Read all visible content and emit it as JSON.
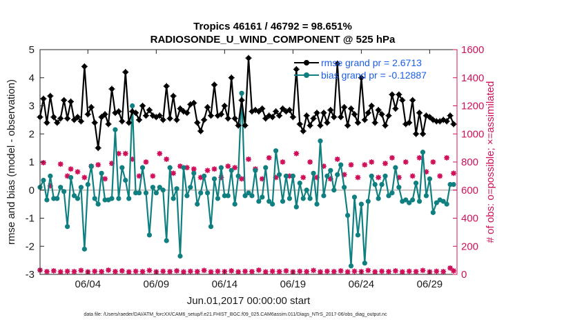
{
  "chart_data": {
    "type": "line",
    "title_line1": "Tropics 46161 / 46792 = 98.651%",
    "title_line2": "RADIOSONDE_U_WIND_COMPONENT @ 525 hPa",
    "xlabel": "Jun.01,2017 00:00:00 start",
    "ylabel_left": "rmse and bias (model - observation)",
    "ylabel_right": "# of obs: o=possible; ×=assimilated",
    "footnote": "data file: /Users/raeder/DAI/ATM_forcXX/CAM6_setup/f.e21.FHIST_BGC.f09_025.CAM6assim.011/Diags_NTrS_2017-06/obs_diag_output.nc",
    "x_range": [
      0.5,
      31.0
    ],
    "x_ticks": [
      4,
      9,
      14,
      19,
      24,
      29
    ],
    "x_tick_labels": [
      "06/04",
      "06/09",
      "06/14",
      "06/19",
      "06/24",
      "06/29"
    ],
    "ylim_left": [
      -3,
      5
    ],
    "y_ticks_left": [
      "-3",
      "-2",
      "-1",
      "0",
      "1",
      "2",
      "3",
      "4",
      "5"
    ],
    "ylim_right": [
      0,
      1600
    ],
    "y_ticks_right": [
      "0",
      "200",
      "400",
      "600",
      "800",
      "1000",
      "1200",
      "1400",
      "1600"
    ],
    "legend": {
      "position": "top-right",
      "rmse_label": "rmse grand pr = 2.6713",
      "bias_label": "bias grand pr = -0.12887"
    },
    "colors": {
      "rmse": "#000000",
      "bias": "#0f7f80",
      "obs": "#d0105a",
      "zero_line": "#c9c0c0",
      "legend_text": "#1a5ee8"
    },
    "rmse": [
      [
        0.5,
        2.6
      ],
      [
        0.75,
        3.25
      ],
      [
        1.0,
        2.4
      ],
      [
        1.25,
        3.35
      ],
      [
        1.5,
        2.6
      ],
      [
        1.75,
        2.4
      ],
      [
        2.0,
        2.55
      ],
      [
        2.25,
        3.2
      ],
      [
        2.5,
        2.55
      ],
      [
        2.75,
        3.15
      ],
      [
        3.0,
        2.5
      ],
      [
        3.25,
        2.6
      ],
      [
        3.5,
        2.45
      ],
      [
        3.75,
        4.4
      ],
      [
        4.0,
        2.7
      ],
      [
        4.25,
        2.95
      ],
      [
        4.5,
        2.4
      ],
      [
        4.75,
        1.5
      ],
      [
        5.0,
        2.6
      ],
      [
        5.25,
        2.7
      ],
      [
        5.5,
        2.35
      ],
      [
        5.75,
        3.6
      ],
      [
        6.0,
        2.75
      ],
      [
        6.25,
        2.8
      ],
      [
        6.5,
        2.45
      ],
      [
        6.75,
        4.2
      ],
      [
        7.0,
        2.4
      ],
      [
        7.25,
        2.8
      ],
      [
        7.5,
        2.75
      ],
      [
        7.75,
        2.5
      ],
      [
        8.0,
        3.0
      ],
      [
        8.25,
        2.65
      ],
      [
        8.5,
        2.85
      ],
      [
        8.75,
        2.65
      ],
      [
        9.0,
        2.6
      ],
      [
        9.25,
        2.65
      ],
      [
        9.5,
        2.5
      ],
      [
        9.75,
        3.7
      ],
      [
        10.0,
        2.55
      ],
      [
        10.25,
        3.35
      ],
      [
        10.5,
        2.5
      ],
      [
        10.75,
        2.9
      ],
      [
        11.0,
        2.8
      ],
      [
        11.25,
        2.75
      ],
      [
        11.5,
        3.05
      ],
      [
        11.75,
        3.1
      ],
      [
        12.0,
        2.4
      ],
      [
        12.25,
        2.1
      ],
      [
        12.5,
        2.5
      ],
      [
        12.75,
        2.95
      ],
      [
        13.0,
        2.65
      ],
      [
        13.25,
        3.75
      ],
      [
        13.5,
        2.65
      ],
      [
        13.75,
        2.7
      ],
      [
        14.0,
        3.0
      ],
      [
        14.25,
        2.55
      ],
      [
        14.5,
        4.0
      ],
      [
        14.75,
        2.55
      ],
      [
        15.0,
        2.3
      ],
      [
        15.25,
        3.2
      ],
      [
        15.5,
        2.3
      ],
      [
        15.75,
        4.7
      ],
      [
        16.0,
        2.8
      ],
      [
        16.25,
        2.85
      ],
      [
        16.5,
        2.8
      ],
      [
        16.75,
        2.9
      ],
      [
        17.0,
        2.55
      ],
      [
        17.25,
        2.65
      ],
      [
        17.5,
        2.6
      ],
      [
        17.75,
        2.8
      ],
      [
        18.0,
        2.65
      ],
      [
        18.25,
        2.9
      ],
      [
        18.5,
        2.8
      ],
      [
        18.75,
        2.85
      ],
      [
        19.0,
        2.6
      ],
      [
        19.25,
        4.3
      ],
      [
        19.5,
        2.35
      ],
      [
        19.75,
        2.1
      ],
      [
        20.0,
        2.65
      ],
      [
        20.25,
        2.3
      ],
      [
        20.5,
        2.55
      ],
      [
        20.75,
        2.75
      ],
      [
        21.0,
        2.3
      ],
      [
        21.25,
        2.75
      ],
      [
        21.5,
        2.4
      ],
      [
        21.75,
        2.85
      ],
      [
        22.0,
        2.6
      ],
      [
        22.25,
        4.5
      ],
      [
        22.5,
        2.6
      ],
      [
        22.75,
        2.95
      ],
      [
        23.0,
        2.3
      ],
      [
        23.25,
        2.9
      ],
      [
        23.5,
        2.7
      ],
      [
        23.75,
        2.4
      ],
      [
        24.0,
        4.0
      ],
      [
        24.25,
        2.5
      ],
      [
        24.5,
        2.75
      ],
      [
        24.75,
        3.0
      ],
      [
        25.0,
        2.4
      ],
      [
        25.25,
        2.85
      ],
      [
        25.5,
        2.7
      ],
      [
        25.75,
        2.3
      ],
      [
        26.0,
        2.65
      ],
      [
        26.25,
        3.4
      ],
      [
        26.5,
        2.9
      ],
      [
        26.75,
        3.4
      ],
      [
        27.0,
        3.2
      ],
      [
        27.25,
        2.35
      ],
      [
        27.5,
        2.4
      ],
      [
        27.75,
        3.2
      ],
      [
        28.0,
        2.0
      ],
      [
        28.25,
        2.75
      ],
      [
        28.5,
        2.0
      ],
      [
        28.75,
        2.65
      ],
      [
        29.0,
        2.6
      ],
      [
        29.25,
        2.5
      ],
      [
        29.5,
        2.45
      ],
      [
        29.75,
        2.45
      ],
      [
        30.0,
        2.5
      ],
      [
        30.25,
        2.45
      ],
      [
        30.5,
        2.65
      ],
      [
        30.75,
        2.35
      ]
    ],
    "bias": [
      [
        0.5,
        0.1
      ],
      [
        0.75,
        0.35
      ],
      [
        1.0,
        -0.35
      ],
      [
        1.25,
        0.5
      ],
      [
        1.5,
        -0.3
      ],
      [
        1.75,
        -0.3
      ],
      [
        2.0,
        0.1
      ],
      [
        2.25,
        -0.05
      ],
      [
        2.5,
        -1.3
      ],
      [
        2.75,
        0.45
      ],
      [
        3.0,
        -0.2
      ],
      [
        3.25,
        -0.3
      ],
      [
        3.5,
        0.1
      ],
      [
        3.75,
        -2.1
      ],
      [
        4.0,
        0.2
      ],
      [
        4.25,
        0.85
      ],
      [
        4.5,
        -0.3
      ],
      [
        4.75,
        -0.5
      ],
      [
        5.0,
        0.6
      ],
      [
        5.25,
        -0.35
      ],
      [
        5.5,
        -0.35
      ],
      [
        5.75,
        -0.3
      ],
      [
        6.0,
        2.15
      ],
      [
        6.25,
        -0.3
      ],
      [
        6.5,
        0.8
      ],
      [
        6.75,
        0.35
      ],
      [
        7.0,
        -0.3
      ],
      [
        7.25,
        3.0
      ],
      [
        7.5,
        -0.1
      ],
      [
        7.75,
        -0.1
      ],
      [
        8.0,
        0.8
      ],
      [
        8.25,
        -0.1
      ],
      [
        8.5,
        -1.6
      ],
      [
        8.75,
        0.1
      ],
      [
        9.0,
        -0.1
      ],
      [
        9.25,
        0.1
      ],
      [
        9.5,
        0.0
      ],
      [
        9.75,
        -1.8
      ],
      [
        10.0,
        0.8
      ],
      [
        10.25,
        -0.3
      ],
      [
        10.5,
        0.05
      ],
      [
        10.75,
        -2.35
      ],
      [
        11.0,
        0.8
      ],
      [
        11.25,
        -0.2
      ],
      [
        11.5,
        0.1
      ],
      [
        11.75,
        0.6
      ],
      [
        12.0,
        -0.5
      ],
      [
        12.25,
        -0.1
      ],
      [
        12.5,
        0.5
      ],
      [
        12.75,
        -0.1
      ],
      [
        13.0,
        -1.3
      ],
      [
        13.25,
        0.4
      ],
      [
        13.5,
        -0.3
      ],
      [
        13.75,
        0.8
      ],
      [
        14.0,
        -0.2
      ],
      [
        14.25,
        -0.2
      ],
      [
        14.5,
        0.7
      ],
      [
        14.75,
        -0.5
      ],
      [
        15.0,
        0.5
      ],
      [
        15.25,
        3.45
      ],
      [
        15.5,
        -0.2
      ],
      [
        15.75,
        -0.1
      ],
      [
        16.0,
        -0.2
      ],
      [
        16.25,
        0.7
      ],
      [
        16.5,
        -0.4
      ],
      [
        16.75,
        -0.25
      ],
      [
        17.0,
        0.8
      ],
      [
        17.25,
        -0.4
      ],
      [
        17.5,
        -0.5
      ],
      [
        17.75,
        1.4
      ],
      [
        18.0,
        0.55
      ],
      [
        18.25,
        -0.4
      ],
      [
        18.5,
        0.5
      ],
      [
        18.75,
        -0.3
      ],
      [
        19.0,
        0.5
      ],
      [
        19.25,
        -0.6
      ],
      [
        19.5,
        0.25
      ],
      [
        19.75,
        -0.3
      ],
      [
        20.0,
        0.0
      ],
      [
        20.25,
        -0.3
      ],
      [
        20.5,
        0.6
      ],
      [
        20.75,
        -0.5
      ],
      [
        21.0,
        1.75
      ],
      [
        21.25,
        -0.2
      ],
      [
        21.5,
        0.5
      ],
      [
        21.75,
        0.7
      ],
      [
        22.0,
        0.0
      ],
      [
        22.25,
        0.55
      ],
      [
        22.5,
        0.9
      ],
      [
        22.75,
        0.1
      ],
      [
        23.0,
        -0.9
      ],
      [
        23.25,
        -2.7
      ],
      [
        23.5,
        -0.25
      ],
      [
        23.75,
        -1.6
      ],
      [
        24.0,
        -0.5
      ],
      [
        24.25,
        -2.6
      ],
      [
        24.5,
        -0.4
      ],
      [
        24.75,
        0.5
      ],
      [
        25.0,
        0.2
      ],
      [
        25.25,
        -0.3
      ],
      [
        25.5,
        0.2
      ],
      [
        25.75,
        0.5
      ],
      [
        26.0,
        -0.2
      ],
      [
        26.25,
        -0.1
      ],
      [
        26.5,
        0.8
      ],
      [
        26.75,
        0.1
      ],
      [
        27.0,
        -0.4
      ],
      [
        27.25,
        -0.35
      ],
      [
        27.5,
        -0.45
      ],
      [
        27.75,
        -0.35
      ],
      [
        28.0,
        0.25
      ],
      [
        28.25,
        -0.4
      ],
      [
        28.5,
        1.35
      ],
      [
        28.75,
        -0.2
      ],
      [
        29.0,
        0.4
      ],
      [
        29.25,
        -0.8
      ],
      [
        29.5,
        -0.45
      ],
      [
        29.75,
        -0.35
      ],
      [
        30.0,
        -0.4
      ],
      [
        30.25,
        -0.5
      ],
      [
        30.5,
        0.2
      ],
      [
        30.75,
        0.2
      ]
    ],
    "obs_possible": [
      [
        0.75,
        795
      ],
      [
        1.25,
        630
      ],
      [
        2.0,
        785
      ],
      [
        2.5,
        700
      ],
      [
        2.75,
        750
      ],
      [
        3.25,
        730
      ],
      [
        3.75,
        690
      ],
      [
        4.25,
        770
      ],
      [
        4.75,
        780
      ],
      [
        5.25,
        680
      ],
      [
        5.75,
        790
      ],
      [
        6.25,
        860
      ],
      [
        6.75,
        860
      ],
      [
        7.25,
        820
      ],
      [
        7.75,
        700
      ],
      [
        8.25,
        800
      ],
      [
        8.75,
        700
      ],
      [
        9.25,
        860
      ],
      [
        9.75,
        820
      ],
      [
        10.25,
        720
      ],
      [
        10.75,
        770
      ],
      [
        11.25,
        760
      ],
      [
        11.75,
        750
      ],
      [
        12.25,
        690
      ],
      [
        12.75,
        740
      ],
      [
        13.25,
        750
      ],
      [
        13.75,
        690
      ],
      [
        14.25,
        770
      ],
      [
        14.75,
        760
      ],
      [
        15.25,
        680
      ],
      [
        15.75,
        820
      ],
      [
        16.25,
        750
      ],
      [
        16.75,
        680
      ],
      [
        17.25,
        830
      ],
      [
        17.75,
        690
      ],
      [
        18.25,
        800
      ],
      [
        18.75,
        700
      ],
      [
        19.25,
        860
      ],
      [
        19.75,
        690
      ],
      [
        20.25,
        800
      ],
      [
        20.75,
        690
      ],
      [
        21.25,
        770
      ],
      [
        21.75,
        680
      ],
      [
        22.25,
        820
      ],
      [
        22.75,
        710
      ],
      [
        23.25,
        780
      ],
      [
        23.75,
        690
      ],
      [
        24.25,
        780
      ],
      [
        24.75,
        800
      ],
      [
        25.25,
        690
      ],
      [
        25.75,
        790
      ],
      [
        26.25,
        830
      ],
      [
        26.75,
        690
      ],
      [
        27.25,
        800
      ],
      [
        27.75,
        700
      ],
      [
        28.25,
        830
      ],
      [
        28.75,
        730
      ],
      [
        29.25,
        800
      ],
      [
        29.75,
        700
      ],
      [
        30.25,
        830
      ],
      [
        30.75,
        720
      ]
    ],
    "obs_assimilated": [
      [
        0.5,
        30
      ],
      [
        1.0,
        20
      ],
      [
        1.5,
        25
      ],
      [
        2.0,
        18
      ],
      [
        2.5,
        22
      ],
      [
        3.0,
        20
      ],
      [
        3.5,
        28
      ],
      [
        4.0,
        18
      ],
      [
        4.5,
        22
      ],
      [
        5.0,
        20
      ],
      [
        5.5,
        30
      ],
      [
        6.0,
        20
      ],
      [
        6.5,
        25
      ],
      [
        7.0,
        18
      ],
      [
        7.5,
        22
      ],
      [
        8.0,
        20
      ],
      [
        8.5,
        28
      ],
      [
        9.0,
        18
      ],
      [
        9.5,
        22
      ],
      [
        10.0,
        20
      ],
      [
        10.5,
        25
      ],
      [
        11.0,
        18
      ],
      [
        11.5,
        22
      ],
      [
        12.0,
        20
      ],
      [
        12.5,
        28
      ],
      [
        13.0,
        18
      ],
      [
        13.5,
        22
      ],
      [
        14.0,
        20
      ],
      [
        14.5,
        25
      ],
      [
        15.0,
        18
      ],
      [
        15.5,
        22
      ],
      [
        16.0,
        20
      ],
      [
        16.5,
        30
      ],
      [
        17.0,
        18
      ],
      [
        17.5,
        22
      ],
      [
        18.0,
        20
      ],
      [
        18.5,
        25
      ],
      [
        19.0,
        18
      ],
      [
        19.5,
        22
      ],
      [
        20.0,
        20
      ],
      [
        20.5,
        28
      ],
      [
        21.0,
        18
      ],
      [
        21.5,
        22
      ],
      [
        22.0,
        20
      ],
      [
        22.5,
        25
      ],
      [
        23.0,
        18
      ],
      [
        23.5,
        22
      ],
      [
        24.0,
        20
      ],
      [
        24.5,
        28
      ],
      [
        25.0,
        18
      ],
      [
        25.5,
        22
      ],
      [
        26.0,
        20
      ],
      [
        26.5,
        25
      ],
      [
        27.0,
        18
      ],
      [
        27.5,
        22
      ],
      [
        28.0,
        20
      ],
      [
        28.5,
        28
      ],
      [
        29.0,
        18
      ],
      [
        29.5,
        22
      ],
      [
        30.0,
        20
      ],
      [
        30.5,
        45
      ],
      [
        30.75,
        25
      ]
    ]
  }
}
